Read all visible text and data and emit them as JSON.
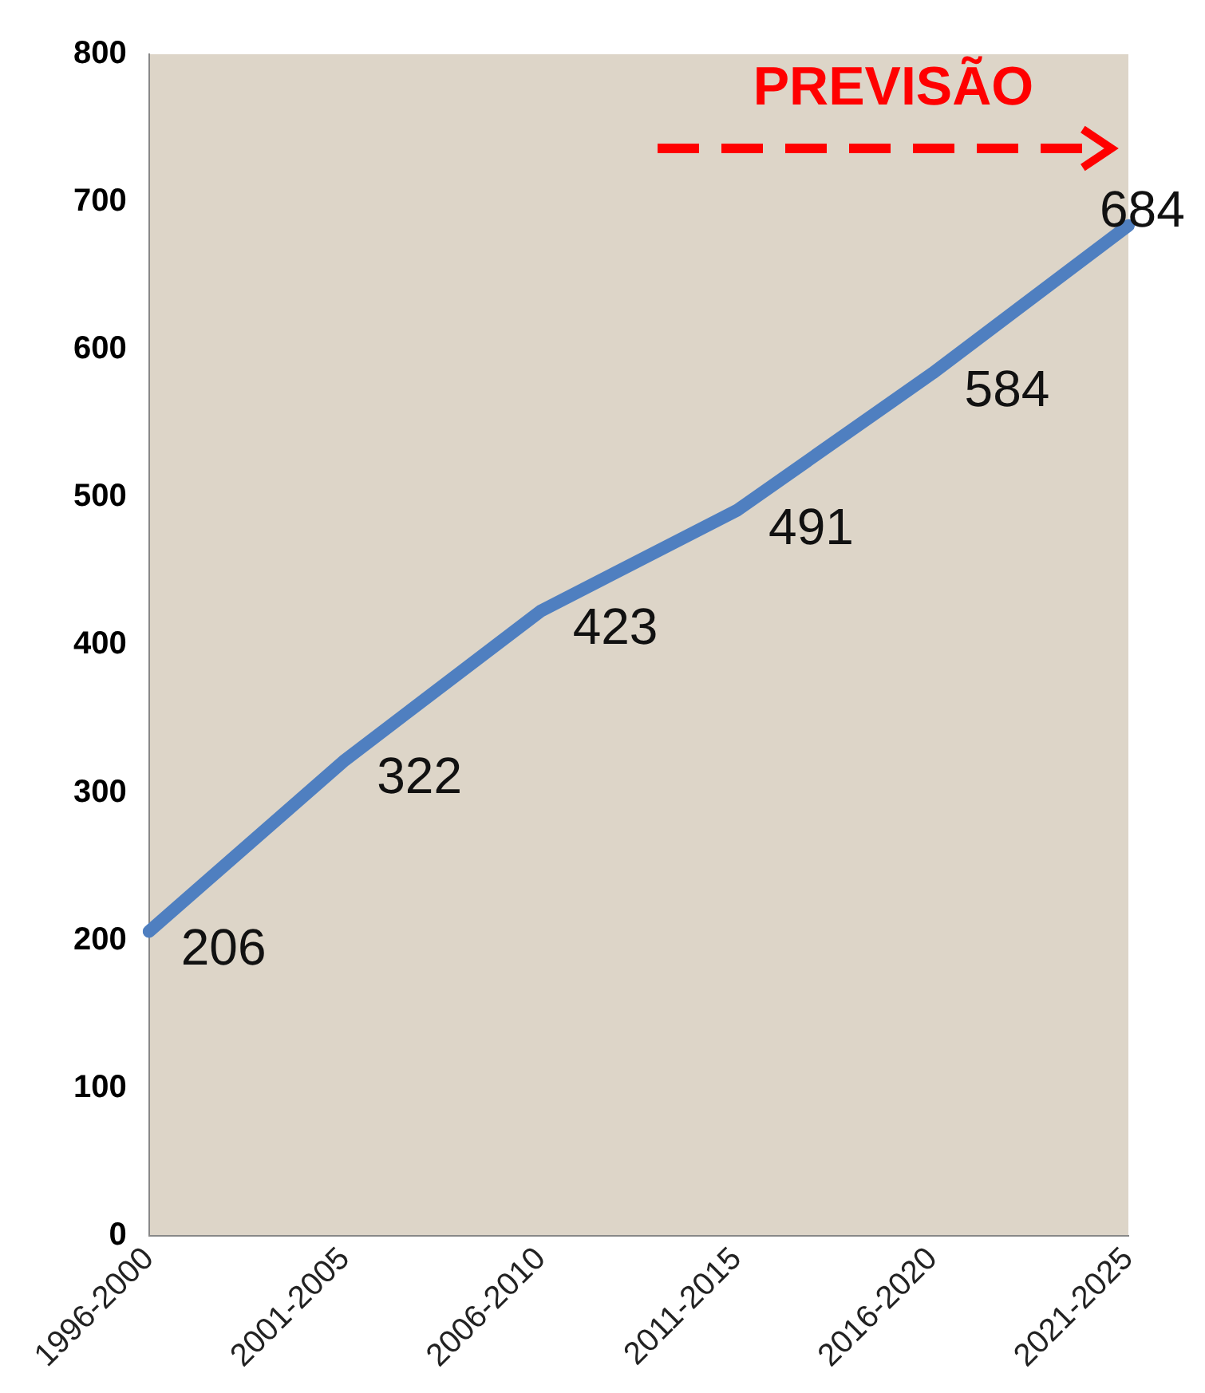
{
  "chart_data": {
    "type": "line",
    "categories": [
      "1996-2000",
      "2001-2005",
      "2006-2010",
      "2011-2015",
      "2016-2020",
      "2021-2025"
    ],
    "series": [
      {
        "color": "#4f7fc0",
        "values": [
          206,
          322,
          423,
          491,
          584,
          684
        ]
      }
    ],
    "ylim": [
      0,
      800
    ],
    "yticks": [
      0,
      100,
      200,
      300,
      400,
      500,
      600,
      700,
      800
    ],
    "grid": false,
    "legend": false,
    "marker": "none",
    "line_style": "solid",
    "data_labels": true,
    "annotations": [
      "PREVISÃO"
    ]
  }
}
